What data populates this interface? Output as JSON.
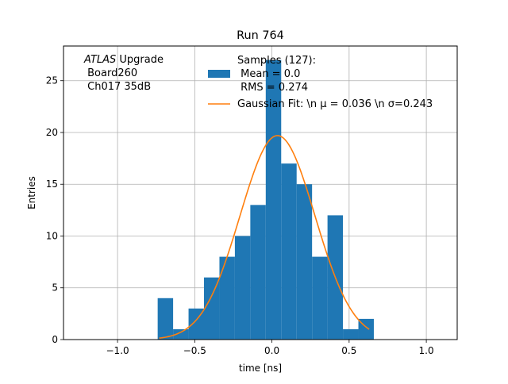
{
  "chart_data": {
    "type": "bar",
    "title": "Run 764",
    "xlabel": "time [ns]",
    "ylabel": "Entries",
    "xlim": [
      -1.35,
      1.2
    ],
    "ylim": [
      0,
      28.35
    ],
    "grid": true,
    "xticks": [
      -1.0,
      -0.5,
      0.0,
      0.5,
      1.0
    ],
    "xtick_labels": [
      "−1.0",
      "−0.5",
      "0.0",
      "0.5",
      "1.0"
    ],
    "yticks": [
      0,
      5,
      10,
      15,
      20,
      25
    ],
    "ytick_labels": [
      "0",
      "5",
      "10",
      "15",
      "20",
      "25"
    ],
    "annotation": {
      "line1_italic": "ATLAS",
      "line1_rest": " Upgrade",
      "line2": " Board260",
      "line3": " Ch017 35dB"
    },
    "histogram": {
      "color": "#1f77b4",
      "bin_edges": [
        -0.74,
        -0.64,
        -0.54,
        -0.44,
        -0.34,
        -0.24,
        -0.14,
        -0.04,
        0.06,
        0.16,
        0.26,
        0.36,
        0.46,
        0.56,
        0.66
      ],
      "counts": [
        4,
        1,
        3,
        6,
        8,
        10,
        13,
        27,
        17,
        15,
        8,
        12,
        1,
        2
      ]
    },
    "gaussian_fit": {
      "color": "#ff7f0e",
      "mu": 0.036,
      "sigma": 0.243,
      "amplitude": 19.7,
      "x_range": [
        -0.73,
        0.63
      ]
    },
    "legend": {
      "placement": "upper-center",
      "hist_label_lines": [
        "Samples (127):",
        " Mean = 0.0",
        " RMS = 0.274"
      ],
      "fit_label": "Gaussian Fit: \\n μ = 0.036 \\n σ=0.243"
    }
  }
}
